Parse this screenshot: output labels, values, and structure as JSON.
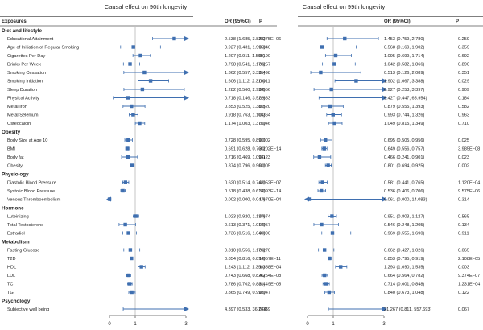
{
  "colors": {
    "marker": "#3f6fb0",
    "refline": "#b8b8b8",
    "separator": "#555555",
    "text": "#222222"
  },
  "legend": {
    "left_title": "Causal effect on 90th longevity",
    "right_title": "Causal effect on 99th longevity"
  },
  "table_headers": {
    "exposures": "Exposures",
    "or_ci": "OR (95%CI)",
    "p": "P"
  },
  "groups": [
    "Diet and lifestyle",
    "Obesity",
    "Physiology",
    "Hormone",
    "Metabolism",
    "Psychology"
  ],
  "chart_data": [
    {
      "type": "forest",
      "title": "Causal effect on 90th longevity",
      "xlim": [
        0,
        3
      ],
      "xticks": [
        "0",
        "1",
        "3"
      ],
      "reference": 1,
      "rows": [
        {
          "group": "Diet and lifestyle",
          "exposure": "Educational Attainment",
          "or": 2.538,
          "lo": 1.685,
          "hi": 3.823,
          "ci": "2.538 (1.685, 3.823)",
          "p": "8.275E−06"
        },
        {
          "group": "Diet and lifestyle",
          "exposure": "Age of Initiation of Regular Smoking",
          "or": 0.927,
          "lo": 0.431,
          "hi": 1.995,
          "ci": "0.927 (0.431, 1.995)",
          "p": "0.846"
        },
        {
          "group": "Diet and lifestyle",
          "exposure": "Cigarettes Per Day",
          "or": 1.207,
          "lo": 0.911,
          "hi": 1.599,
          "ci": "1.207 (0.911, 1.599)",
          "p": "0.190"
        },
        {
          "group": "Diet and lifestyle",
          "exposure": "Drinks Per Week",
          "or": 0.798,
          "lo": 0.541,
          "hi": 1.178,
          "ci": "0.798 (0.541, 1.178)",
          "p": "0.257"
        },
        {
          "group": "Diet and lifestyle",
          "exposure": "Smoking Cessation",
          "or": 1.362,
          "lo": 0.557,
          "hi": 3.331,
          "ci": "1.362 (0.557, 3.331)",
          "p": "0.498"
        },
        {
          "group": "Diet and lifestyle",
          "exposure": "Smoking Initiation",
          "or": 1.606,
          "lo": 1.112,
          "hi": 2.319,
          "ci": "1.606 (1.112, 2.319)",
          "p": "0.011"
        },
        {
          "group": "Diet and lifestyle",
          "exposure": "Sleep Duration",
          "or": 1.282,
          "lo": 0.56,
          "hi": 2.934,
          "ci": "1.282 (0.560, 2.934)",
          "p": "0.556"
        },
        {
          "group": "Diet and lifestyle",
          "exposure": "Physical Activity",
          "or": 0.718,
          "lo": 0.146,
          "hi": 3.522,
          "ci": "0.718 (0.146, 3.522)",
          "p": "0.683"
        },
        {
          "group": "Diet and lifestyle",
          "exposure": "Metal Iron",
          "or": 0.853,
          "lo": 0.525,
          "hi": 1.385,
          "ci": "0.853 (0.525, 1.385)",
          "p": "0.520"
        },
        {
          "group": "Diet and lifestyle",
          "exposure": "Metal Selenium",
          "or": 0.918,
          "lo": 0.763,
          "hi": 1.104,
          "ci": "0.918 (0.763, 1.104)",
          "p": "0.364"
        },
        {
          "group": "Diet and lifestyle",
          "exposure": "Osteocalcin",
          "or": 1.174,
          "lo": 1.003,
          "hi": 1.375,
          "ci": "1.174 (1.003, 1.375)",
          "p": "0.046"
        },
        {
          "group": "Obesity",
          "exposure": "Body Size at Age 10",
          "or": 0.728,
          "lo": 0.595,
          "hi": 0.89,
          "ci": "0.728 (0.595, 0.890)",
          "p": "0.002"
        },
        {
          "group": "Obesity",
          "exposure": "BMI",
          "or": 0.691,
          "lo": 0.628,
          "hi": 0.76,
          "ci": "0.691 (0.628, 0.760)",
          "p": "3.202E−14"
        },
        {
          "group": "Obesity",
          "exposure": "Body fat",
          "or": 0.716,
          "lo": 0.469,
          "hi": 1.094,
          "ci": "0.716 (0.469, 1.094)",
          "p": "0.123"
        },
        {
          "group": "Obesity",
          "exposure": "Obesity",
          "or": 0.874,
          "lo": 0.796,
          "hi": 0.96,
          "ci": "0.874 (0.796, 0.960)",
          "p": "0.005"
        },
        {
          "group": "Physiology",
          "exposure": "Diastolic Blood Pressure",
          "or": 0.62,
          "lo": 0.514,
          "hi": 0.748,
          "ci": "0.620 (0.514, 0.748)",
          "p": "6.052E−07"
        },
        {
          "group": "Physiology",
          "exposure": "Systolic Blood Pressure",
          "or": 0.518,
          "lo": 0.438,
          "hi": 0.614,
          "ci": "0.518 (0.438, 0.614)",
          "p": "3.093E−14"
        },
        {
          "group": "Physiology",
          "exposure": "Venous Thromboembolism",
          "or": 0.002,
          "lo": 0.0,
          "hi": 0.047,
          "ci": "0.002 (0.000, 0.047)",
          "p": "1.670E−04"
        },
        {
          "group": "Hormone",
          "exposure": "Luteinizing",
          "or": 1.023,
          "lo": 0.92,
          "hi": 1.137,
          "ci": "1.023 (0.920, 1.137)",
          "p": "0.674"
        },
        {
          "group": "Hormone",
          "exposure": "Total Testosterone",
          "or": 0.613,
          "lo": 0.371,
          "hi": 1.014,
          "ci": "0.613 (0.371, 1.014)",
          "p": "0.057"
        },
        {
          "group": "Hormone",
          "exposure": "Estradiol",
          "or": 0.736,
          "lo": 0.516,
          "hi": 1.049,
          "ci": "0.736 (0.516, 1.049)",
          "p": "0.090"
        },
        {
          "group": "Metabolism",
          "exposure": "Fasting Glucose",
          "or": 0.81,
          "lo": 0.556,
          "hi": 1.179,
          "ci": "0.810 (0.556, 1.179)",
          "p": "0.270"
        },
        {
          "group": "Metabolism",
          "exposure": "T2D",
          "or": 0.854,
          "lo": 0.816,
          "hi": 0.894,
          "ci": "0.854 (0.816, 0.894)",
          "p": "1.057E−11"
        },
        {
          "group": "Metabolism",
          "exposure": "HDL",
          "or": 1.243,
          "lo": 1.112,
          "hi": 1.39,
          "ci": "1.243 (1.112, 1.390)",
          "p": "1.358E−04"
        },
        {
          "group": "Metabolism",
          "exposure": "LDL",
          "or": 0.743,
          "lo": 0.668,
          "hi": 0.826,
          "ci": "0.743 (0.668, 0.826)",
          "p": "4.254E−08"
        },
        {
          "group": "Metabolism",
          "exposure": "TC",
          "or": 0.786,
          "lo": 0.702,
          "hi": 0.881,
          "ci": "0.786 (0.702, 0.881)",
          "p": "3.449E−05"
        },
        {
          "group": "Metabolism",
          "exposure": "TG",
          "or": 0.865,
          "lo": 0.749,
          "hi": 0.998,
          "ci": "0.865 (0.749, 0.998)",
          "p": "0.047"
        },
        {
          "group": "Psychology",
          "exposure": "Subjective well being",
          "or": 4.397,
          "lo": 0.533,
          "hi": 36.244,
          "ci": "4.397 (0.533, 36.244)",
          "p": "0.169"
        }
      ]
    },
    {
      "type": "forest",
      "title": "Causal effect on 99th longevity",
      "xlim": [
        0,
        3
      ],
      "xticks": [
        "0",
        "1",
        "3"
      ],
      "reference": 1,
      "rows": [
        {
          "group": "Diet and lifestyle",
          "exposure": "Educational Attainment",
          "or": 1.453,
          "lo": 0.759,
          "hi": 2.78,
          "ci": "1.453 (0.759, 2.780)",
          "p": "0.259"
        },
        {
          "group": "Diet and lifestyle",
          "exposure": "Age of Initiation of Regular Smoking",
          "or": 0.568,
          "lo": 0.169,
          "hi": 1.902,
          "ci": "0.568 (0.169, 1.902)",
          "p": "0.359"
        },
        {
          "group": "Diet and lifestyle",
          "exposure": "Cigarettes Per Day",
          "or": 1.095,
          "lo": 0.699,
          "hi": 1.714,
          "ci": "1.095 (0.699, 1.714)",
          "p": "0.692"
        },
        {
          "group": "Diet and lifestyle",
          "exposure": "Drinks Per Week",
          "or": 1.042,
          "lo": 0.582,
          "hi": 1.866,
          "ci": "1.042 (0.582, 1.866)",
          "p": "0.890"
        },
        {
          "group": "Diet and lifestyle",
          "exposure": "Smoking Cessation",
          "or": 0.513,
          "lo": 0.126,
          "hi": 2.089,
          "ci": "0.513 (0.126, 2.089)",
          "p": "0.351"
        },
        {
          "group": "Diet and lifestyle",
          "exposure": "Smoking Initiation",
          "or": 1.902,
          "lo": 1.067,
          "hi": 3.388,
          "ci": "1.902 (1.067, 3.388)",
          "p": "0.029"
        },
        {
          "group": "Diet and lifestyle",
          "exposure": "Sleep Duration",
          "or": 0.927,
          "lo": 0.253,
          "hi": 3.397,
          "ci": "0.927 (0.253, 3.397)",
          "p": "0.909"
        },
        {
          "group": "Diet and lifestyle",
          "exposure": "Physical Activity",
          "or": 5.427,
          "lo": 0.447,
          "hi": 65.954,
          "ci": "5.427 (0.447, 65.954)",
          "p": "0.184"
        },
        {
          "group": "Diet and lifestyle",
          "exposure": "Metal Iron",
          "or": 0.879,
          "lo": 0.555,
          "hi": 1.393,
          "ci": "0.879 (0.555, 1.393)",
          "p": "0.582"
        },
        {
          "group": "Diet and lifestyle",
          "exposure": "Metal Selenium",
          "or": 0.993,
          "lo": 0.744,
          "hi": 1.326,
          "ci": "0.993 (0.744, 1.326)",
          "p": "0.963"
        },
        {
          "group": "Diet and lifestyle",
          "exposure": "Osteocalcin",
          "or": 1.049,
          "lo": 0.815,
          "hi": 1.349,
          "ci": "1.049 (0.815, 1.349)",
          "p": "0.710"
        },
        {
          "group": "Obesity",
          "exposure": "Body Size at Age 10",
          "or": 0.695,
          "lo": 0.505,
          "hi": 0.956,
          "ci": "0.695 (0.505, 0.956)",
          "p": "0.025"
        },
        {
          "group": "Obesity",
          "exposure": "BMI",
          "or": 0.649,
          "lo": 0.556,
          "hi": 0.757,
          "ci": "0.649 (0.556, 0.757)",
          "p": "3.985E−08"
        },
        {
          "group": "Obesity",
          "exposure": "Body fat",
          "or": 0.466,
          "lo": 0.241,
          "hi": 0.901,
          "ci": "0.466 (0.241, 0.901)",
          "p": "0.023"
        },
        {
          "group": "Obesity",
          "exposure": "Obesity",
          "or": 0.801,
          "lo": 0.694,
          "hi": 0.925,
          "ci": "0.801 (0.694, 0.925)",
          "p": "0.002"
        },
        {
          "group": "Physiology",
          "exposure": "Diastolic Blood Pressure",
          "or": 0.581,
          "lo": 0.441,
          "hi": 0.765,
          "ci": "0.581 (0.441, 0.765)",
          "p": "1.120E−04"
        },
        {
          "group": "Physiology",
          "exposure": "Systolic Blood Pressure",
          "or": 0.536,
          "lo": 0.406,
          "hi": 0.706,
          "ci": "0.536 (0.406, 0.706)",
          "p": "9.575E−06"
        },
        {
          "group": "Physiology",
          "exposure": "Venous Thromboembolism",
          "or": 0.061,
          "lo": 0.0,
          "hi": 14.083,
          "ci": "0.061 (0.000, 14.083)",
          "p": "0.314"
        },
        {
          "group": "Hormone",
          "exposure": "Luteinizing",
          "or": 0.951,
          "lo": 0.803,
          "hi": 1.127,
          "ci": "0.951 (0.803, 1.127)",
          "p": "0.565"
        },
        {
          "group": "Hormone",
          "exposure": "Total Testosterone",
          "or": 0.546,
          "lo": 0.248,
          "hi": 1.205,
          "ci": "0.546 (0.248, 1.205)",
          "p": "0.134"
        },
        {
          "group": "Hormone",
          "exposure": "Estradiol",
          "or": 0.969,
          "lo": 0.555,
          "hi": 1.69,
          "ci": "0.969 (0.555, 1.690)",
          "p": "0.911"
        },
        {
          "group": "Metabolism",
          "exposure": "Fasting Glucose",
          "or": 0.662,
          "lo": 0.427,
          "hi": 1.026,
          "ci": "0.662 (0.427, 1.026)",
          "p": "0.065"
        },
        {
          "group": "Metabolism",
          "exposure": "T2D",
          "or": 0.853,
          "lo": 0.795,
          "hi": 0.919,
          "ci": "0.853 (0.795, 0.919)",
          "p": "2.108E−05"
        },
        {
          "group": "Metabolism",
          "exposure": "HDL",
          "or": 1.293,
          "lo": 1.09,
          "hi": 1.535,
          "ci": "1.293 (1.090, 1.535)",
          "p": "0.003"
        },
        {
          "group": "Metabolism",
          "exposure": "LDL",
          "or": 0.664,
          "lo": 0.564,
          "hi": 0.782,
          "ci": "0.664 (0.564, 0.782)",
          "p": "9.374E−07"
        },
        {
          "group": "Metabolism",
          "exposure": "TC",
          "or": 0.714,
          "lo": 0.601,
          "hi": 0.848,
          "ci": "0.714 (0.601, 0.848)",
          "p": "1.231E−04"
        },
        {
          "group": "Metabolism",
          "exposure": "TG",
          "or": 0.84,
          "lo": 0.673,
          "hi": 1.048,
          "ci": "0.840 (0.673, 1.048)",
          "p": "0.122"
        },
        {
          "group": "Psychology",
          "exposure": "Subjective well being",
          "or": 21.267,
          "lo": 0.811,
          "hi": 557.693,
          "ci": "21.267 (0.811, 557.693)",
          "p": "0.067"
        }
      ]
    }
  ]
}
